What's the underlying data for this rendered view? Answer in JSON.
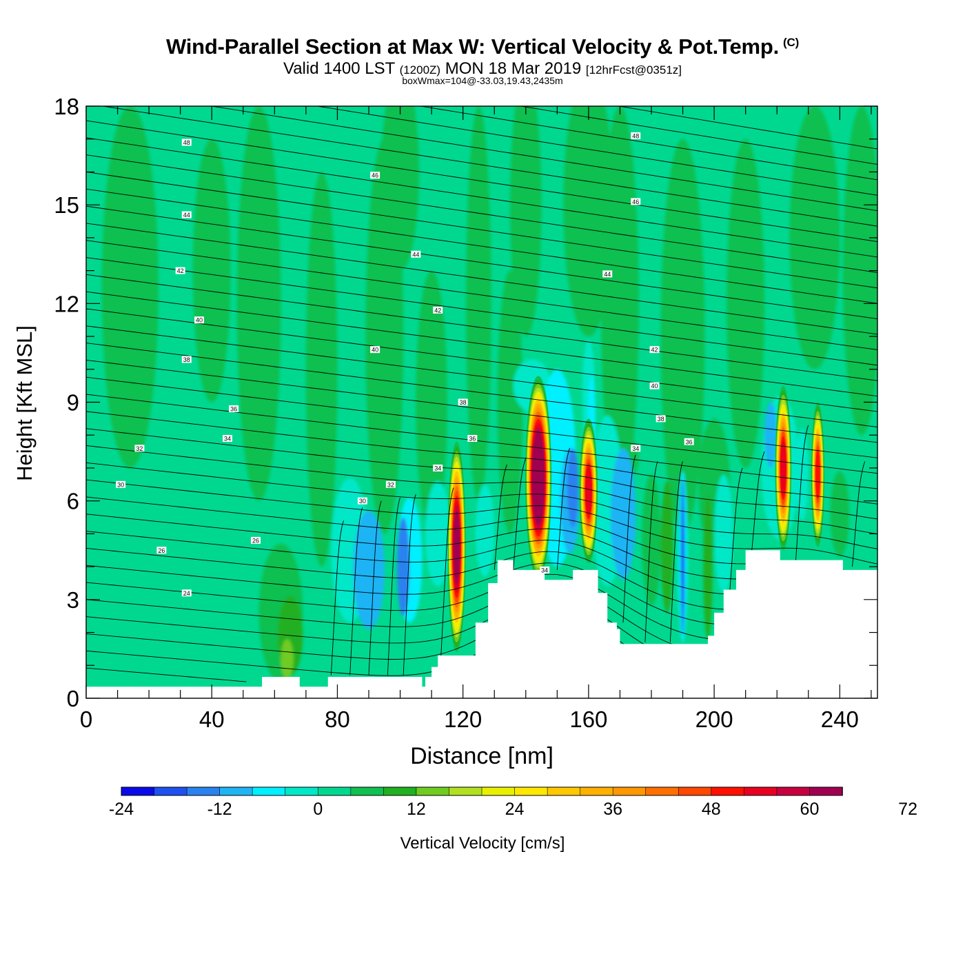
{
  "header": {
    "title": "Wind-Parallel Section at Max W: Vertical Velocity & Pot.Temp.",
    "copyright": "(C)",
    "valid_prefix": "Valid 1400 LST",
    "valid_utc": "(1200Z)",
    "valid_date": "MON 18 Mar 2019",
    "forecast": "[12hrFcst@0351z]",
    "box_info": "boxWmax=104@-33.03,19.43,2435m"
  },
  "chart_data": {
    "type": "heatmap",
    "xlabel": "Distance [nm]",
    "ylabel": "Height [Kft MSL]",
    "xlim": [
      0,
      252
    ],
    "ylim": [
      0,
      18
    ],
    "x_ticks": [
      0,
      40,
      80,
      120,
      160,
      200,
      240
    ],
    "y_ticks": [
      0,
      3,
      6,
      9,
      12,
      15,
      18
    ],
    "colorbar": {
      "label": "Vertical Velocity [cm/s]",
      "levels": [
        -24,
        -20,
        -16,
        -12,
        -8,
        -4,
        0,
        4,
        8,
        12,
        16,
        20,
        24,
        28,
        32,
        36,
        40,
        44,
        48,
        52,
        56,
        60,
        64,
        68,
        72
      ],
      "tick_labels": [
        "-24",
        "-12",
        "0",
        "12",
        "24",
        "36",
        "48",
        "60",
        "72"
      ],
      "colors": [
        "#0a0ae8",
        "#1f50f0",
        "#2a82f0",
        "#1fb4f4",
        "#00f0ff",
        "#00e8c8",
        "#00d890",
        "#10c050",
        "#20b020",
        "#70cc20",
        "#b0e020",
        "#e8f000",
        "#ffe800",
        "#ffc800",
        "#ffb000",
        "#ff9800",
        "#ff7000",
        "#ff4800",
        "#ff1000",
        "#e80020",
        "#c80040",
        "#a00050"
      ]
    },
    "terrain_kft": [
      [
        0,
        0.35
      ],
      [
        55,
        0.35
      ],
      [
        56,
        0.65
      ],
      [
        67,
        0.65
      ],
      [
        68,
        0.35
      ],
      [
        76,
        0.35
      ],
      [
        77,
        0.65
      ],
      [
        106,
        0.65
      ],
      [
        107,
        0.35
      ],
      [
        108,
        0.65
      ],
      [
        110,
        0.95
      ],
      [
        112,
        1.3
      ],
      [
        123,
        1.3
      ],
      [
        124,
        2.3
      ],
      [
        127,
        2.3
      ],
      [
        128,
        3.5
      ],
      [
        131,
        4.2
      ],
      [
        135,
        4.2
      ],
      [
        136,
        3.9
      ],
      [
        145,
        3.9
      ],
      [
        146,
        3.6
      ],
      [
        154,
        3.6
      ],
      [
        155,
        3.9
      ],
      [
        162,
        3.9
      ],
      [
        163,
        3.2
      ],
      [
        166,
        2.3
      ],
      [
        169,
        2.1
      ],
      [
        170,
        1.65
      ],
      [
        197,
        1.65
      ],
      [
        198,
        1.9
      ],
      [
        200,
        2.6
      ],
      [
        203,
        3.3
      ],
      [
        207,
        3.9
      ],
      [
        209,
        3.9
      ],
      [
        210,
        4.5
      ],
      [
        220,
        4.5
      ],
      [
        221,
        4.2
      ],
      [
        240,
        4.2
      ],
      [
        241,
        3.9
      ],
      [
        252,
        3.9
      ]
    ],
    "theta_labels": [
      {
        "x": 32,
        "y": 16.9,
        "text": "48"
      },
      {
        "x": 92,
        "y": 15.9,
        "text": "46"
      },
      {
        "x": 32,
        "y": 14.7,
        "text": "44"
      },
      {
        "x": 30,
        "y": 13.0,
        "text": "42"
      },
      {
        "x": 36,
        "y": 11.5,
        "text": "40"
      },
      {
        "x": 32,
        "y": 10.3,
        "text": "38"
      },
      {
        "x": 47,
        "y": 8.8,
        "text": "36"
      },
      {
        "x": 45,
        "y": 7.9,
        "text": "34"
      },
      {
        "x": 17,
        "y": 7.6,
        "text": "32"
      },
      {
        "x": 11,
        "y": 6.5,
        "text": "30"
      },
      {
        "x": 24,
        "y": 4.5,
        "text": "26"
      },
      {
        "x": 32,
        "y": 3.2,
        "text": "24"
      },
      {
        "x": 54,
        "y": 4.8,
        "text": "26"
      },
      {
        "x": 88,
        "y": 6.0,
        "text": "30"
      },
      {
        "x": 97,
        "y": 6.5,
        "text": "32"
      },
      {
        "x": 112,
        "y": 7.0,
        "text": "34"
      },
      {
        "x": 123,
        "y": 7.9,
        "text": "36"
      },
      {
        "x": 120,
        "y": 9.0,
        "text": "38"
      },
      {
        "x": 92,
        "y": 10.6,
        "text": "40"
      },
      {
        "x": 112,
        "y": 11.8,
        "text": "42"
      },
      {
        "x": 105,
        "y": 13.5,
        "text": "44"
      },
      {
        "x": 175,
        "y": 17.1,
        "text": "48"
      },
      {
        "x": 175,
        "y": 15.1,
        "text": "46"
      },
      {
        "x": 166,
        "y": 12.9,
        "text": "44"
      },
      {
        "x": 181,
        "y": 10.6,
        "text": "42"
      },
      {
        "x": 181,
        "y": 9.5,
        "text": "40"
      },
      {
        "x": 183,
        "y": 8.5,
        "text": "38"
      },
      {
        "x": 192,
        "y": 7.8,
        "text": "36"
      },
      {
        "x": 175,
        "y": 7.6,
        "text": "34"
      },
      {
        "x": 146,
        "y": 3.9,
        "text": "34"
      }
    ]
  }
}
